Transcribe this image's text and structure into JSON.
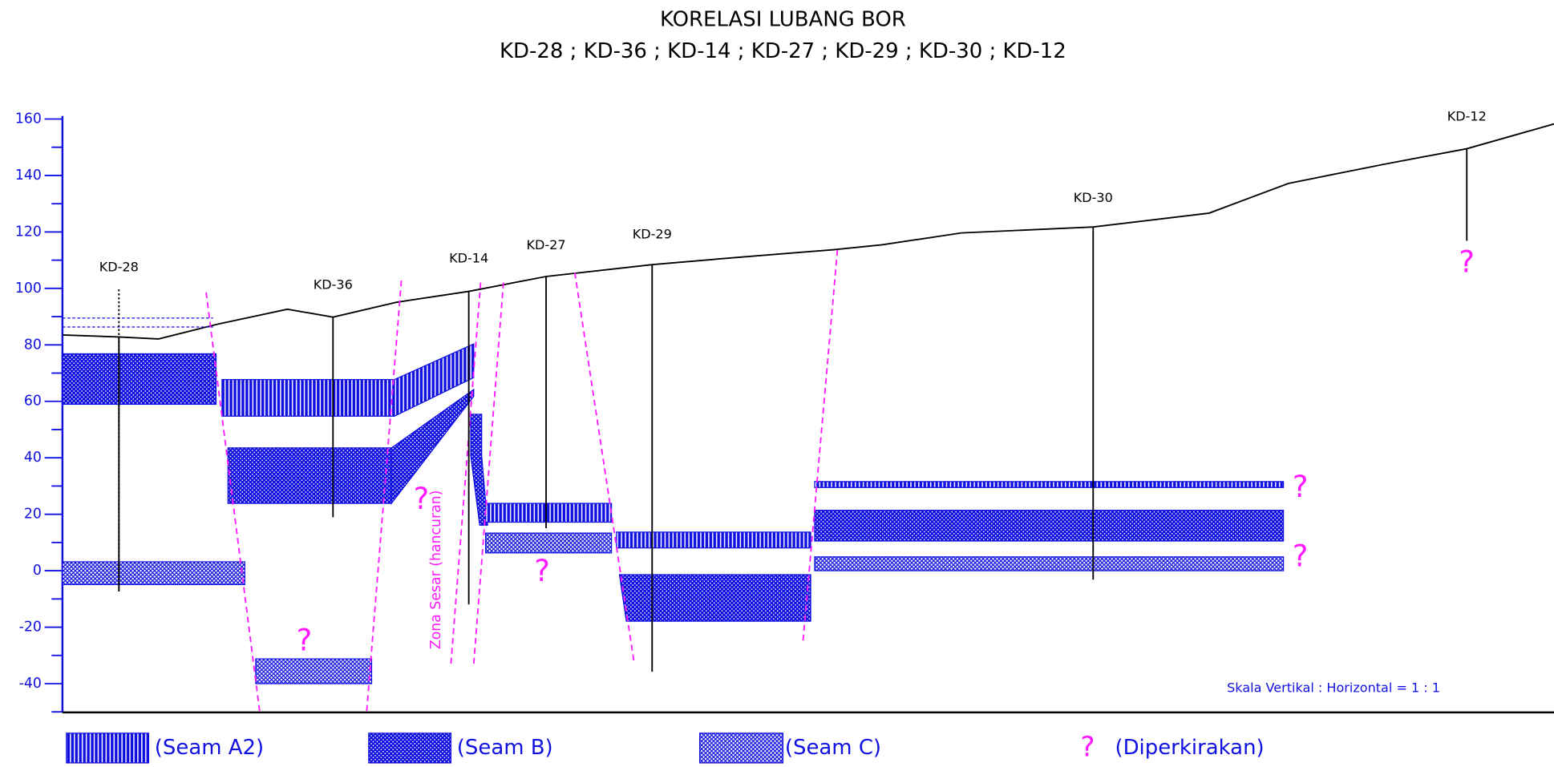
{
  "header": {
    "title": "KORELASI LUBANG BOR",
    "subtitle": "KD-28 ; KD-36 ; KD-14 ; KD-27 ; KD-29 ; KD-30 ; KD-12"
  },
  "y_axis": {
    "ylim": [
      -50,
      160
    ],
    "yticks": [
      -40,
      -20,
      0,
      20,
      40,
      60,
      80,
      100,
      120,
      140,
      160
    ],
    "minor_yticks": [
      -50,
      -30,
      -10,
      10,
      30,
      50,
      70,
      90,
      110,
      130,
      150
    ]
  },
  "boreholes": [
    "KD-28",
    "KD-36",
    "KD-14",
    "KD-27",
    "KD-29",
    "KD-30",
    "KD-12"
  ],
  "annotations": {
    "fault_zone": "Zona Sesar (hancuran)",
    "scale_note": "Skala Vertikal : Horizontal = 1 : 1",
    "question_marks": [
      "?",
      "?",
      "?",
      "?",
      "?",
      "?"
    ]
  },
  "legend": [
    {
      "label": "(Seam A2)"
    },
    {
      "label": "(Seam B)"
    },
    {
      "label": "(Seam C)"
    },
    {
      "symbol": "?",
      "label": "(Diperkirakan)"
    }
  ]
}
